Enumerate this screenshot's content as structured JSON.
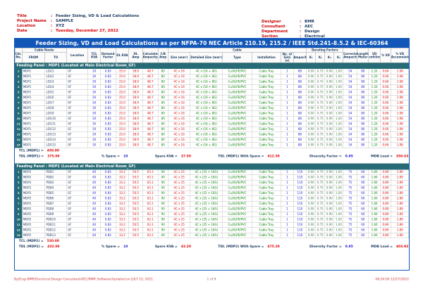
{
  "meta": {
    "left": [
      {
        "label": "Title",
        "value": "Feeder Sizing, VD & Load Calculations",
        "color": "navy"
      },
      {
        "label": "Project Name",
        "value": "SAMPLE",
        "color": "navy"
      },
      {
        "label": "Location",
        "value": "XYZ",
        "color": "navy"
      },
      {
        "label": "Date",
        "value": "Tuesday, December 27, 2022",
        "color": "red"
      }
    ],
    "right": [
      {
        "label": "Designer",
        "value": "BMR"
      },
      {
        "label": "Consultant",
        "value": "AEC"
      },
      {
        "label": "Department",
        "value": "Design"
      },
      {
        "label": "Section",
        "value": "Electrical"
      }
    ]
  },
  "title_bar": "Feeder Sizing, VD and Load Calculations as per NFPA-70 NEC Article 210.19, 215.2 / IEEE Std.241-8.5.2 & IEC-60364",
  "columns": {
    "ckt": "Ckt.\nNo.",
    "cable_route": "Cable Route",
    "from": "FROM",
    "to": "TO",
    "location": "Location",
    "tcl": "TCL\nKVA",
    "demand_factor": "Demand\nFactor",
    "dl_kva": "DL KVA",
    "dl_amp": "DL\nAmp",
    "calculated_ampacity": "Calculated\nAmpacity",
    "cb_amp": "C/B\nAmp",
    "cable_group": "Cable",
    "size": "Size (mm²)",
    "detailed_size": "Detailed Size (mm²)",
    "type": "Type",
    "installation": "Installation",
    "sets": "No. of Sets\n(x)",
    "ampacity": "Ampacity",
    "derating_group": "Derating Factors",
    "k": [
      "K₁",
      "K₂",
      "K₃",
      "K₄"
    ],
    "corrected_ampacity": "Corrected\nAmpacity",
    "length": "Length\nMeter",
    "vd": "VD\nvolt/km",
    "percent_vd": "% VD",
    "percent_vd_acc": "% VD Accumulated"
  },
  "sections": [
    {
      "title": "Feeding Panel : MDP1 (Located at Main Electrical Room_GF)",
      "rows": [
        [
          "1",
          "MDP1",
          "LDG1",
          "GF",
          "30",
          "0.83",
          "25.0",
          "38.9",
          "48.7",
          "80",
          "4C x 16",
          "4C x (16 + 8G)",
          "Cu/XLPE/PVC",
          "Cable Tray",
          "1",
          "88",
          "0.90",
          "0.75",
          "0.90",
          "1.00",
          "54",
          "80",
          "1.20",
          "0.66",
          "1.98"
        ],
        [
          "2",
          "MDP1",
          "LDG2",
          "GF",
          "30",
          "0.83",
          "25.0",
          "38.9",
          "48.7",
          "80",
          "4C x 16",
          "4C x (16 + 8G)",
          "Cu/XLPE/PVC",
          "Cable Tray",
          "1",
          "88",
          "0.90",
          "0.75",
          "0.90",
          "1.00",
          "54",
          "80",
          "1.20",
          "0.66",
          "1.98"
        ],
        [
          "3",
          "MDP1",
          "LDG3",
          "GF",
          "30",
          "0.83",
          "25.0",
          "38.9",
          "48.7",
          "80",
          "4C x 16",
          "4C x (16 + 8G)",
          "Cu/XLPE/PVC",
          "Cable Tray",
          "1",
          "88",
          "0.90",
          "0.75",
          "0.90",
          "1.00",
          "54",
          "80",
          "1.20",
          "0.66",
          "1.98"
        ],
        [
          "4",
          "MDP1",
          "LDG4",
          "GF",
          "30",
          "0.83",
          "25.0",
          "38.9",
          "48.7",
          "80",
          "4C x 16",
          "4C x (16 + 8G)",
          "Cu/XLPE/PVC",
          "Cable Tray",
          "1",
          "88",
          "0.90",
          "0.75",
          "0.90",
          "1.00",
          "54",
          "80",
          "1.20",
          "0.66",
          "1.98"
        ],
        [
          "5",
          "MDP1",
          "LDG5",
          "GF",
          "30",
          "0.83",
          "25.0",
          "38.9",
          "48.7",
          "80",
          "4C x 16",
          "4C x (16 + 8G)",
          "Cu/XLPE/PVC",
          "Cable Tray",
          "1",
          "88",
          "0.90",
          "0.75",
          "0.90",
          "1.00",
          "54",
          "80",
          "1.20",
          "0.66",
          "1.98"
        ],
        [
          "6",
          "MDP1",
          "LDG6",
          "GF",
          "30",
          "0.83",
          "25.0",
          "38.9",
          "48.7",
          "80",
          "4C x 16",
          "4C x (16 + 8G)",
          "Cu/XLPE/PVC",
          "Cable Tray",
          "1",
          "88",
          "0.90",
          "0.75",
          "0.90",
          "1.00",
          "54",
          "80",
          "1.20",
          "0.66",
          "1.98"
        ],
        [
          "7",
          "MDP1",
          "LDG7",
          "GF",
          "30",
          "0.83",
          "25.0",
          "38.9",
          "48.7",
          "80",
          "4C x 16",
          "4C x (16 + 8G)",
          "Cu/XLPE/PVC",
          "Cable Tray",
          "1",
          "88",
          "0.90",
          "0.75",
          "0.90",
          "1.00",
          "54",
          "80",
          "1.20",
          "0.66",
          "1.98"
        ],
        [
          "8",
          "MDP1",
          "LDG8",
          "GF",
          "30",
          "0.83",
          "25.0",
          "38.9",
          "48.7",
          "80",
          "4C x 16",
          "4C x (16 + 8G)",
          "Cu/XLPE/PVC",
          "Cable Tray",
          "1",
          "88",
          "0.90",
          "0.75",
          "0.90",
          "1.00",
          "54",
          "80",
          "1.20",
          "0.66",
          "1.98"
        ],
        [
          "9",
          "MDP1",
          "LDG9",
          "GF",
          "30",
          "0.83",
          "25.0",
          "38.9",
          "48.7",
          "80",
          "4C x 16",
          "4C x (16 + 8G)",
          "Cu/XLPE/PVC",
          "Cable Tray",
          "1",
          "88",
          "0.90",
          "0.75",
          "0.90",
          "1.00",
          "54",
          "80",
          "1.20",
          "0.66",
          "1.98"
        ],
        [
          "10",
          "MDP1",
          "LDG10",
          "GF",
          "30",
          "0.83",
          "25.0",
          "38.9",
          "48.7",
          "80",
          "4C x 16",
          "4C x (16 + 8G)",
          "Cu/XLPE/PVC",
          "Cable Tray",
          "1",
          "88",
          "0.90",
          "0.75",
          "0.90",
          "1.00",
          "54",
          "80",
          "1.20",
          "0.66",
          "1.98"
        ],
        [
          "11",
          "MDP1",
          "LDG11",
          "GF",
          "30",
          "0.83",
          "25.0",
          "38.9",
          "48.7",
          "80",
          "4C x 16",
          "4C x (16 + 8G)",
          "Cu/XLPE/PVC",
          "Cable Tray",
          "1",
          "88",
          "0.90",
          "0.75",
          "0.90",
          "1.00",
          "54",
          "80",
          "1.20",
          "0.66",
          "1.98"
        ],
        [
          "12",
          "MDP1",
          "LDG12",
          "GF",
          "30",
          "0.83",
          "25.0",
          "38.9",
          "48.7",
          "80",
          "4C x 16",
          "4C x (16 + 8G)",
          "Cu/XLPE/PVC",
          "Cable Tray",
          "1",
          "88",
          "0.90",
          "0.75",
          "0.90",
          "1.00",
          "54",
          "80",
          "1.20",
          "0.66",
          "1.98"
        ],
        [
          "13",
          "MDP1",
          "LDG13",
          "GF",
          "30",
          "0.83",
          "25.0",
          "38.9",
          "48.7",
          "80",
          "4C x 16",
          "4C x (16 + 8G)",
          "Cu/XLPE/PVC",
          "Cable Tray",
          "1",
          "88",
          "0.90",
          "0.75",
          "0.90",
          "1.00",
          "54",
          "80",
          "1.20",
          "0.66",
          "1.98"
        ],
        [
          "14",
          "MDP1",
          "LDG14",
          "GF",
          "30",
          "0.83",
          "25.0",
          "38.9",
          "48.7",
          "80",
          "4C x 16",
          "4C x (16 + 8G)",
          "Cu/XLPE/PVC",
          "Cable Tray",
          "1",
          "88",
          "0.90",
          "0.75",
          "0.90",
          "1.00",
          "54",
          "80",
          "1.20",
          "0.66",
          "1.98"
        ],
        [
          "15",
          "MDP1",
          "LDG15",
          "GF",
          "30",
          "0.83",
          "25.0",
          "38.9",
          "48.7",
          "80",
          "4C x 16",
          "4C x (16 + 8G)",
          "Cu/XLPE/PVC",
          "Cable Tray",
          "1",
          "88",
          "0.90",
          "0.75",
          "0.90",
          "1.00",
          "54",
          "80",
          "1.20",
          "0.66",
          "1.98"
        ]
      ],
      "totals": {
        "line1": {
          "label": "TCL (MDP1) =",
          "value": "450.00"
        },
        "line2": [
          {
            "label": "TDL (MDP1) =",
            "value": "375.00",
            "vc": "red"
          },
          {
            "label": "% Spare =",
            "value": "10",
            "vc": "blue"
          },
          {
            "label": "Spare KVA =",
            "value": "37.50",
            "vc": "red"
          },
          {
            "label": "TDL (MDP1) With Spare =",
            "value": "412.50",
            "vc": "red"
          },
          {
            "label": "Diversity Factor =",
            "value": "0.85",
            "vc": "blue"
          },
          {
            "label": "MDB Load =",
            "value": "350.63",
            "vc": "red"
          }
        ]
      }
    },
    {
      "title": "Feeding Panel : MDP2 (Located at Main Electrical Room_GF)",
      "rows": [
        [
          "1",
          "MDP2",
          "PDB1",
          "GF",
          "40",
          "0.83",
          "33.2",
          "50.5",
          "63.1",
          "90",
          "4C x 25",
          "4C x (25 + 16G)",
          "Cu/XLPE/PVC",
          "Cable Tray",
          "1",
          "110",
          "0.90",
          "0.75",
          "0.90",
          "1.00",
          "75",
          "60",
          "1.60",
          "0.89",
          "1.89"
        ],
        [
          "2",
          "MDP2",
          "PDB2",
          "GF",
          "40",
          "0.83",
          "33.2",
          "50.5",
          "63.1",
          "90",
          "4C x 25",
          "4C x (25 + 16G)",
          "Cu/XLPE/PVC",
          "Cable Tray",
          "1",
          "110",
          "0.90",
          "0.75",
          "0.90",
          "1.00",
          "75",
          "60",
          "1.60",
          "0.89",
          "1.89"
        ],
        [
          "3",
          "MDP2",
          "PDB3",
          "GF",
          "40",
          "0.83",
          "33.2",
          "50.5",
          "63.1",
          "90",
          "4C x 25",
          "4C x (25 + 16G)",
          "Cu/XLPE/PVC",
          "Cable Tray",
          "1",
          "110",
          "0.90",
          "0.75",
          "0.90",
          "1.00",
          "75",
          "60",
          "1.60",
          "0.89",
          "1.89"
        ],
        [
          "4",
          "MDP2",
          "PDB4",
          "GF",
          "40",
          "0.83",
          "33.2",
          "50.5",
          "63.1",
          "90",
          "4C x 25",
          "4C x (25 + 16G)",
          "Cu/XLPE/PVC",
          "Cable Tray",
          "1",
          "110",
          "0.90",
          "0.75",
          "0.90",
          "1.00",
          "75",
          "60",
          "1.60",
          "0.89",
          "1.89"
        ],
        [
          "5",
          "MDP2",
          "PDB5",
          "GF",
          "40",
          "0.83",
          "33.2",
          "50.5",
          "63.1",
          "90",
          "4C x 25",
          "4C x (25 + 16G)",
          "Cu/XLPE/PVC",
          "Cable Tray",
          "1",
          "110",
          "0.90",
          "0.75",
          "0.90",
          "1.00",
          "75",
          "60",
          "1.60",
          "0.89",
          "1.89"
        ],
        [
          "6",
          "MDP2",
          "PDB6",
          "GF",
          "40",
          "0.83",
          "33.2",
          "50.5",
          "63.1",
          "90",
          "4C x 25",
          "4C x (25 + 16G)",
          "Cu/XLPE/PVC",
          "Cable Tray",
          "1",
          "110",
          "0.90",
          "0.75",
          "0.90",
          "1.00",
          "75",
          "60",
          "1.60",
          "0.89",
          "1.89"
        ],
        [
          "7",
          "MDP2",
          "PDB7",
          "GF",
          "40",
          "0.83",
          "33.2",
          "50.5",
          "63.1",
          "90",
          "4C x 25",
          "4C x (25 + 16G)",
          "Cu/XLPE/PVC",
          "Cable Tray",
          "1",
          "110",
          "0.90",
          "0.75",
          "0.90",
          "1.00",
          "75",
          "60",
          "1.60",
          "0.89",
          "1.89"
        ],
        [
          "8",
          "MDP2",
          "PDB8",
          "GF",
          "40",
          "0.83",
          "33.2",
          "50.5",
          "63.1",
          "90",
          "4C x 25",
          "4C x (25 + 16G)",
          "Cu/XLPE/PVC",
          "Cable Tray",
          "1",
          "110",
          "0.90",
          "0.75",
          "0.90",
          "1.00",
          "75",
          "60",
          "1.60",
          "0.89",
          "1.89"
        ],
        [
          "9",
          "MDP2",
          "PDB9",
          "GF",
          "40",
          "0.83",
          "33.2",
          "50.5",
          "63.1",
          "90",
          "4C x 25",
          "4C x (25 + 16G)",
          "Cu/XLPE/PVC",
          "Cable Tray",
          "1",
          "110",
          "0.90",
          "0.75",
          "0.90",
          "1.00",
          "75",
          "60",
          "1.60",
          "0.89",
          "1.89"
        ],
        [
          "10",
          "MDP2",
          "PDB10",
          "GF",
          "40",
          "0.83",
          "33.2",
          "50.5",
          "63.1",
          "90",
          "4C x 25",
          "4C x (25 + 16G)",
          "Cu/XLPE/PVC",
          "Cable Tray",
          "1",
          "110",
          "0.90",
          "0.75",
          "0.90",
          "1.00",
          "75",
          "60",
          "1.60",
          "0.89",
          "1.89"
        ],
        [
          "11",
          "MDP2",
          "PDB11",
          "GF",
          "40",
          "0.83",
          "33.2",
          "50.5",
          "63.1",
          "90",
          "4C x 25",
          "4C x (25 + 16G)",
          "Cu/XLPE/PVC",
          "Cable Tray",
          "1",
          "110",
          "0.90",
          "0.75",
          "0.90",
          "1.00",
          "75",
          "60",
          "1.60",
          "0.89",
          "1.89"
        ],
        [
          "12",
          "MDP2",
          "PDB12",
          "GF",
          "40",
          "0.83",
          "33.2",
          "50.5",
          "63.1",
          "90",
          "4C x 25",
          "4C x (25 + 16G)",
          "Cu/XLPE/PVC",
          "Cable Tray",
          "1",
          "110",
          "0.90",
          "0.75",
          "0.90",
          "1.00",
          "75",
          "60",
          "1.60",
          "0.89",
          "1.89"
        ],
        [
          "13",
          "MDP2",
          "PDB13",
          "GF",
          "40",
          "0.83",
          "33.2",
          "50.5",
          "63.1",
          "90",
          "4C x 25",
          "4C x (25 + 16G)",
          "Cu/XLPE/PVC",
          "Cable Tray",
          "1",
          "110",
          "0.90",
          "0.75",
          "0.90",
          "1.00",
          "75",
          "60",
          "1.60",
          "0.89",
          "1.89"
        ]
      ],
      "totals": {
        "line1": {
          "label": "TCL (MDP2) =",
          "value": "520.00"
        },
        "line2": [
          {
            "label": "TDL (MDP2) =",
            "value": "432.00",
            "vc": "red"
          },
          {
            "label": "% Spare =",
            "value": "10",
            "vc": "blue"
          },
          {
            "label": "Spare KVA =",
            "value": "43.20",
            "vc": "red"
          },
          {
            "label": "TDL (MDP2) With Spare =",
            "value": "475.20",
            "vc": "red"
          },
          {
            "label": "Diversity Factor =",
            "value": "0.85",
            "vc": "blue"
          },
          {
            "label": "MDB Load =",
            "value": "403.92",
            "vc": "red"
          }
        ]
      }
    }
  ],
  "footer": {
    "left": "By/Engr.BMR/Electrical Design Consultant/AEC/BMR Software/Updated on JULY 15, 2021",
    "center": "1 of 8",
    "right": "08:24:00  12/27/2022"
  },
  "colors": {
    "title_bar": "#1257b8",
    "section_bar": "#276b76",
    "header_text": "#17375e",
    "value_blue": "#1414d4",
    "value_red": "#e00000",
    "value_green": "#008000",
    "label_red": "#cc0000"
  }
}
